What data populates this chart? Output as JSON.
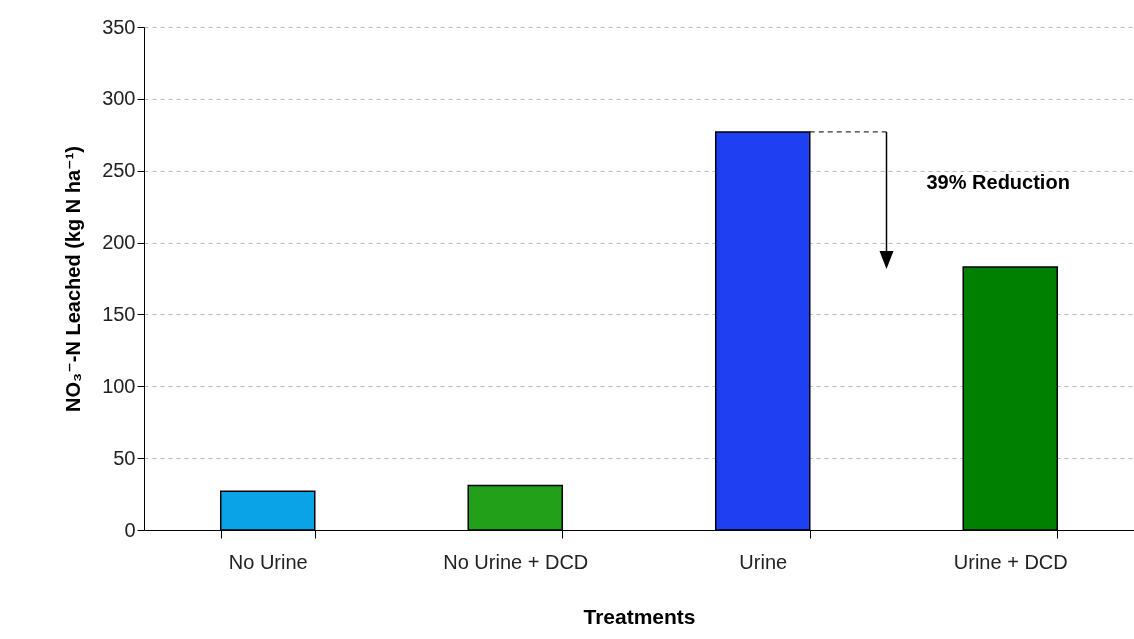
{
  "chart_data": {
    "type": "bar",
    "xlabel": "Treatments",
    "ylabel": "NO₃⁻-N Leached (kg N ha⁻¹)",
    "categories": [
      "No Urine",
      "No Urine + DCD",
      "Urine",
      "Urine + DCD"
    ],
    "values": [
      27,
      31,
      277,
      183
    ],
    "colors": [
      "#0ba3e8",
      "#22a019",
      "#1e3ff2",
      "#008000"
    ],
    "ylim": [
      0,
      350
    ],
    "yticks": [
      0,
      50,
      100,
      150,
      200,
      250,
      300,
      350
    ],
    "grid": "y",
    "annotations": [
      "39% Reduction"
    ]
  }
}
